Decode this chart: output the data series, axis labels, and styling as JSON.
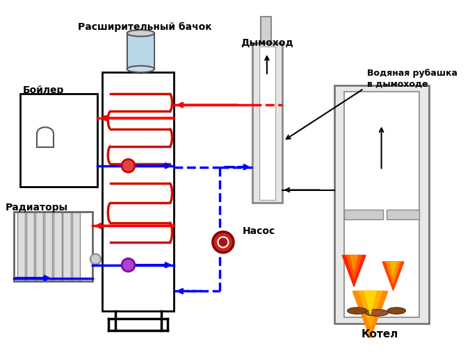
{
  "title": "",
  "labels": {
    "expansion_tank": "Расширительный бачок",
    "chimney": "Дымоход",
    "water_jacket": "Водяная рубашка\nв дымоходе",
    "boiler": "Бойлер",
    "radiators": "Радиаторы",
    "pump": "Насос",
    "furnace": "Котел"
  },
  "colors": {
    "hot": "#FF0000",
    "cold": "#0000FF",
    "pipe_dashed_hot": "#FF0000",
    "pipe_dashed_cold": "#0000FF",
    "body": "#000000",
    "fill_light": "#E8E8E8",
    "fill_tank_water": "#B0D8E8",
    "coil": "#CC2200",
    "chimney_grey": "#A0A0A0",
    "flame_red": "#FF2200",
    "flame_orange": "#FF8C00",
    "flame_yellow": "#FFD700",
    "furnace_body": "#808080",
    "bg": "#FFFFFF"
  }
}
